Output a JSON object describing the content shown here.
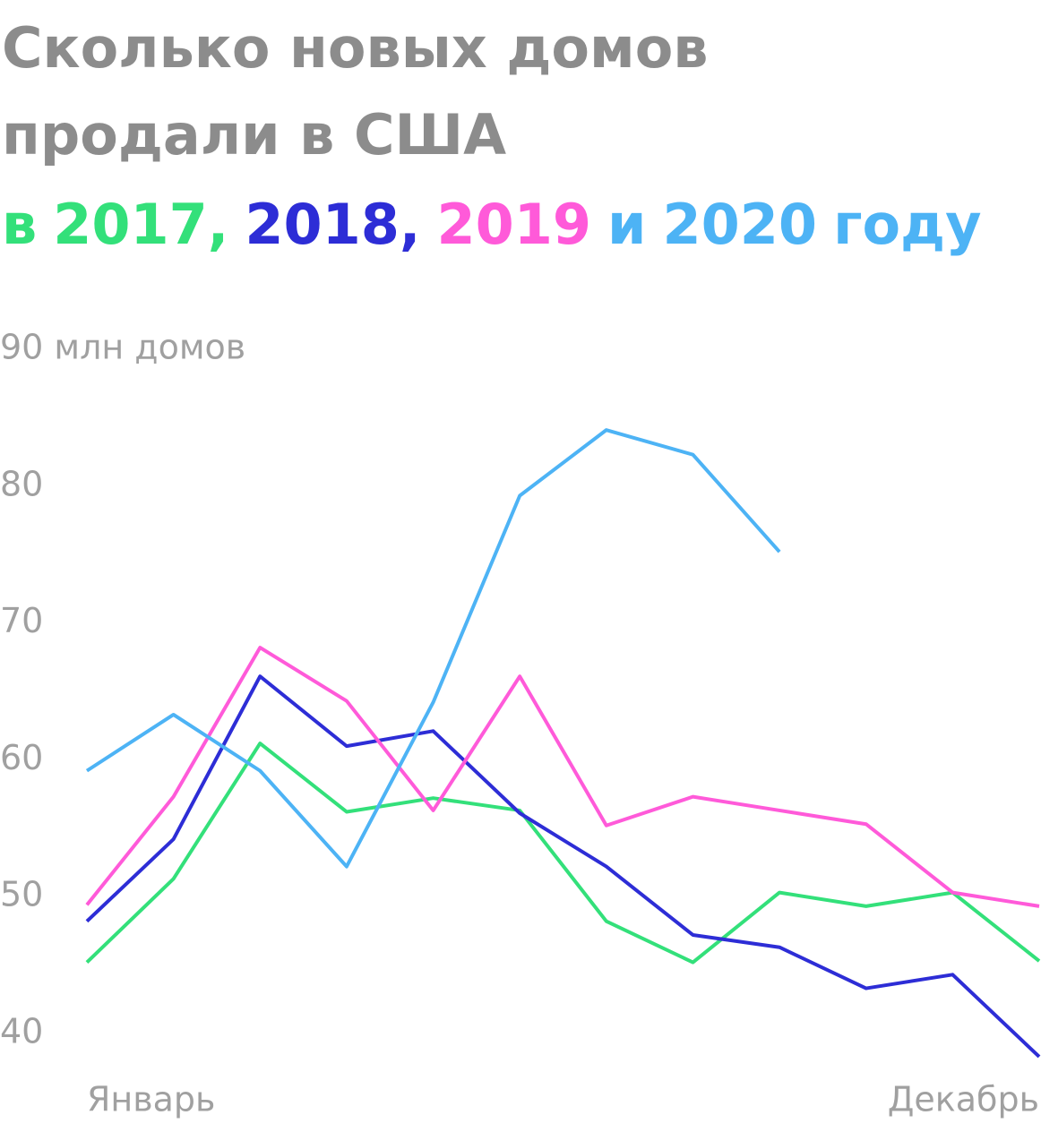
{
  "chart_data": {
    "type": "line",
    "title_lines": [
      "Сколько новых домов",
      "продали в США"
    ],
    "title_legend": {
      "prefix": "в",
      "separators": [
        ",",
        ","
      ],
      "conjunction": "и",
      "suffix": "году"
    },
    "categories": [
      "Январь",
      null,
      null,
      null,
      null,
      null,
      null,
      null,
      null,
      null,
      null,
      "Декабрь"
    ],
    "series": [
      {
        "name": "2017",
        "color": "#33e07a",
        "values": [
          45.2,
          51.3,
          61.2,
          56.2,
          57.2,
          56.3,
          48.2,
          45.2,
          50.3,
          49.3,
          50.3,
          45.3
        ]
      },
      {
        "name": "2018",
        "color": "#2d2dd6",
        "values": [
          48.2,
          54.2,
          66.1,
          61.0,
          62.1,
          56.1,
          52.2,
          47.2,
          46.3,
          43.3,
          44.3,
          38.3
        ]
      },
      {
        "name": "2019",
        "color": "#ff5ad9",
        "values": [
          49.4,
          57.3,
          68.2,
          64.3,
          56.3,
          66.1,
          55.2,
          57.3,
          56.3,
          55.3,
          50.3,
          49.3
        ]
      },
      {
        "name": "2020",
        "color": "#4db3f5",
        "values": [
          59.2,
          63.3,
          59.2,
          52.2,
          64.2,
          79.3,
          84.1,
          82.3,
          75.2,
          null,
          null,
          null
        ]
      }
    ],
    "ylim": [
      40,
      90
    ],
    "yticks": [
      40,
      50,
      60,
      70,
      80,
      {
        "value": 90,
        "label": "90 млн домов"
      }
    ],
    "grid": false
  }
}
